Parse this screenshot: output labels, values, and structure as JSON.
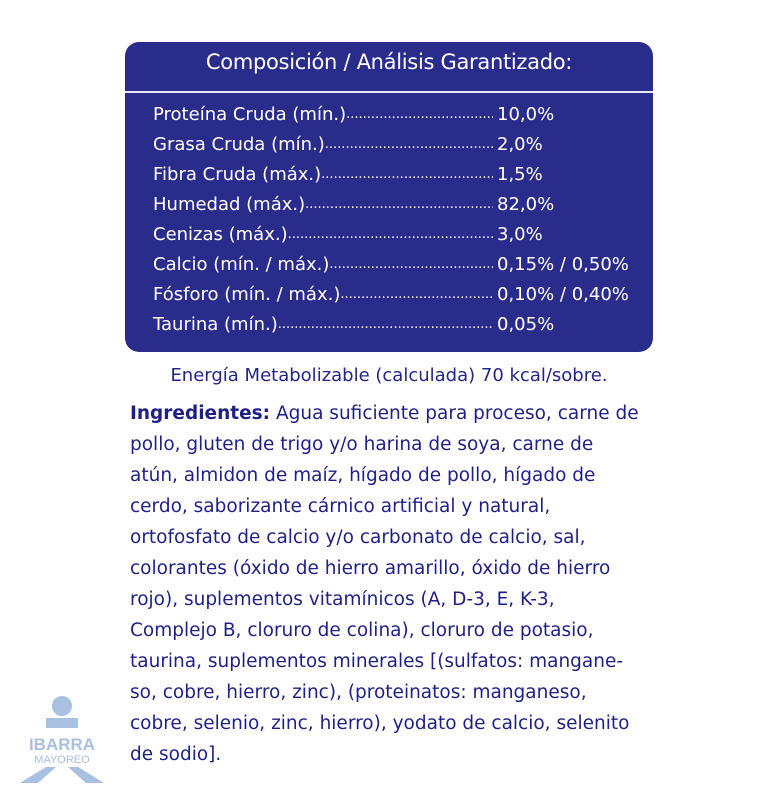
{
  "analysis": {
    "title": "Composición / Análisis Garantizado:",
    "rows": [
      {
        "label": "Proteína Cruda (mín.)",
        "value": "10,0%"
      },
      {
        "label": "Grasa Cruda (mín.)",
        "value": "2,0%"
      },
      {
        "label": "Fibra Cruda (máx.)",
        "value": "1,5%"
      },
      {
        "label": "Humedad (máx.)",
        "value": "82,0%"
      },
      {
        "label": "Cenizas (máx.)",
        "value": "3,0%"
      },
      {
        "label": "Calcio (mín. / máx.)",
        "value": "0,15% / 0,50%"
      },
      {
        "label": "Fósforo (mín. / máx.)",
        "value": "0,10% / 0,40%"
      },
      {
        "label": "Taurina (mín.)",
        "value": "0,05%"
      }
    ]
  },
  "energy": "Energía Metabolizable (calculada) 70 kcal/sobre.",
  "ingredients": {
    "heading": "Ingredientes:",
    "lines": [
      " Agua suficiente para proceso, carne de",
      "pollo, gluten de trigo y/o harina de soya, carne de",
      "atún, almidon de maíz, hígado de pollo, hígado de",
      "cerdo, saborizante cárnico artificial y natural,",
      "ortofosfato de calcio y/o carbonato de calcio, sal,",
      "colorantes (óxido de hierro amarillo, óxido de hierro",
      "rojo), suplementos vitamínicos (A, D-3, E, K-3,",
      "Complejo B, cloruro de colina), cloruro de potasio,",
      "taurina, suplementos minerales [(sulfatos: mangane-",
      "so, cobre, hierro, zinc), (proteinatos: manganeso,",
      "cobre, selenio, zinc, hierro), yodato de calcio, selenito",
      "de sodio]."
    ]
  },
  "logo": {
    "line1": "IBARRA",
    "line2": "MAYOREO",
    "color": "#a9c0e0"
  },
  "colors": {
    "box": "#2a2c8c",
    "text": "#1f1f88"
  }
}
